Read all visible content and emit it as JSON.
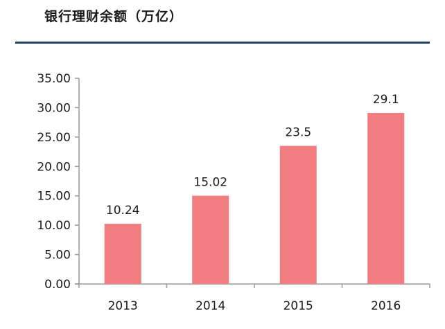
{
  "header": {
    "title": "银行理财余额（万亿）"
  },
  "chart_data": {
    "type": "bar",
    "title": "银行理财余额（万亿）",
    "xlabel": "",
    "ylabel": "",
    "categories": [
      "2013",
      "2014",
      "2015",
      "2016"
    ],
    "values": [
      10.24,
      15.02,
      23.5,
      29.1
    ],
    "data_labels": [
      "10.24",
      "15.02",
      "23.5",
      "29.1"
    ],
    "ylim": [
      0,
      35
    ],
    "y_ticks": [
      "0.00",
      "5.00",
      "10.00",
      "15.00",
      "20.00",
      "25.00",
      "30.00",
      "35.00"
    ],
    "grid": false,
    "legend": "none",
    "colors": {
      "bar": "#f17d80",
      "axis": "#9a9a9a",
      "title_rule": "#1f3f66"
    }
  }
}
